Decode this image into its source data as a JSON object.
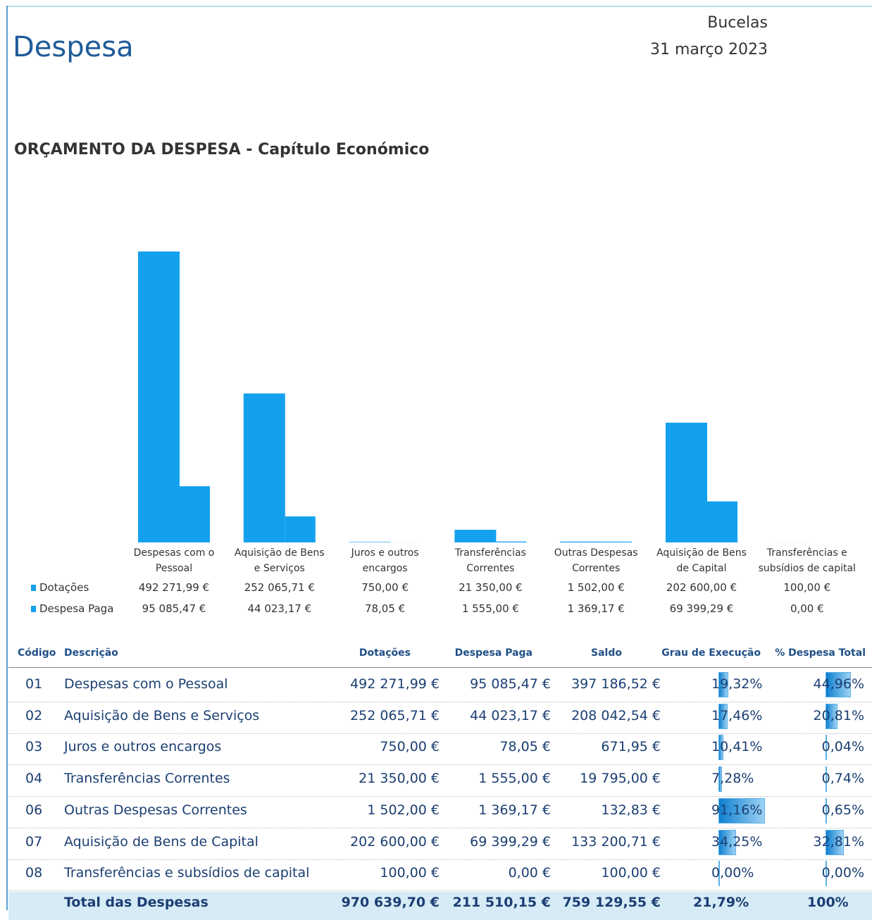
{
  "header": {
    "title": "Despesa",
    "location": "Bucelas",
    "date": "31 março 2023"
  },
  "section_title": "ORÇAMENTO DA DESPESA - Capítulo Económico",
  "chart_data": {
    "type": "bar",
    "categories": [
      "Despesas com o Pessoal",
      "Aquisição de Bens e Serviços",
      "Juros e outros encargos",
      "Transferências Correntes",
      "Outras Despesas Correntes",
      "Aquisição de Bens de Capital",
      "Transferências e subsídios de capital"
    ],
    "series": [
      {
        "name": "Dotações",
        "color": "#13a1ee",
        "values": [
          492271.99,
          252065.71,
          750.0,
          21350.0,
          1502.0,
          202600.0,
          100.0
        ],
        "value_labels": [
          "492 271,99 €",
          "252 065,71 €",
          "750,00 €",
          "21 350,00 €",
          "1 502,00 €",
          "202 600,00 €",
          "100,00 €"
        ]
      },
      {
        "name": "Despesa Paga",
        "color": "#13a1ee",
        "values": [
          95085.47,
          44023.17,
          78.05,
          1555.0,
          1369.17,
          69399.29,
          0.0
        ],
        "value_labels": [
          "95 085,47 €",
          "44 023,17 €",
          "78,05 €",
          "1 555,00 €",
          "1 369,17 €",
          "69 399,29 €",
          "0,00 €"
        ]
      }
    ]
  },
  "table": {
    "columns": [
      "Código",
      "Descrição",
      "Dotações",
      "Despesa Paga",
      "Saldo",
      "Grau de Execução",
      "% Despesa Total"
    ],
    "rows": [
      {
        "codigo": "01",
        "descricao": "Despesas com o Pessoal",
        "dotacoes": "492 271,99 €",
        "despesa_paga": "95 085,47 €",
        "saldo": "397 186,52 €",
        "grau": {
          "value": 19.32,
          "label": "19,32%"
        },
        "pct": {
          "value": 44.96,
          "label": "44,96%"
        }
      },
      {
        "codigo": "02",
        "descricao": "Aquisição de Bens e Serviços",
        "dotacoes": "252 065,71 €",
        "despesa_paga": "44 023,17 €",
        "saldo": "208 042,54 €",
        "grau": {
          "value": 17.46,
          "label": "17,46%"
        },
        "pct": {
          "value": 20.81,
          "label": "20,81%"
        }
      },
      {
        "codigo": "03",
        "descricao": "Juros e outros encargos",
        "dotacoes": "750,00 €",
        "despesa_paga": "78,05 €",
        "saldo": "671,95 €",
        "grau": {
          "value": 10.41,
          "label": "10,41%"
        },
        "pct": {
          "value": 0.04,
          "label": "0,04%"
        }
      },
      {
        "codigo": "04",
        "descricao": "Transferências Correntes",
        "dotacoes": "21 350,00 €",
        "despesa_paga": "1 555,00 €",
        "saldo": "19 795,00 €",
        "grau": {
          "value": 7.28,
          "label": "7,28%"
        },
        "pct": {
          "value": 0.74,
          "label": "0,74%"
        }
      },
      {
        "codigo": "06",
        "descricao": "Outras Despesas Correntes",
        "dotacoes": "1 502,00 €",
        "despesa_paga": "1 369,17 €",
        "saldo": "132,83 €",
        "grau": {
          "value": 91.16,
          "label": "91,16%"
        },
        "pct": {
          "value": 0.65,
          "label": "0,65%"
        }
      },
      {
        "codigo": "07",
        "descricao": "Aquisição de Bens de Capital",
        "dotacoes": "202 600,00 €",
        "despesa_paga": "69 399,29 €",
        "saldo": "133 200,71 €",
        "grau": {
          "value": 34.25,
          "label": "34,25%"
        },
        "pct": {
          "value": 32.81,
          "label": "32,81%"
        }
      },
      {
        "codigo": "08",
        "descricao": "Transferências e subsídios de capital",
        "dotacoes": "100,00 €",
        "despesa_paga": "0,00 €",
        "saldo": "100,00 €",
        "grau": {
          "value": 0.0,
          "label": "0,00%"
        },
        "pct": {
          "value": 0.0,
          "label": "0,00%"
        }
      }
    ],
    "total": {
      "descricao": "Total das Despesas",
      "dotacoes": "970 639,70 €",
      "despesa_paga": "211 510,15 €",
      "saldo": "759 129,55 €",
      "grau": "21,79%",
      "pct": "100%"
    }
  }
}
